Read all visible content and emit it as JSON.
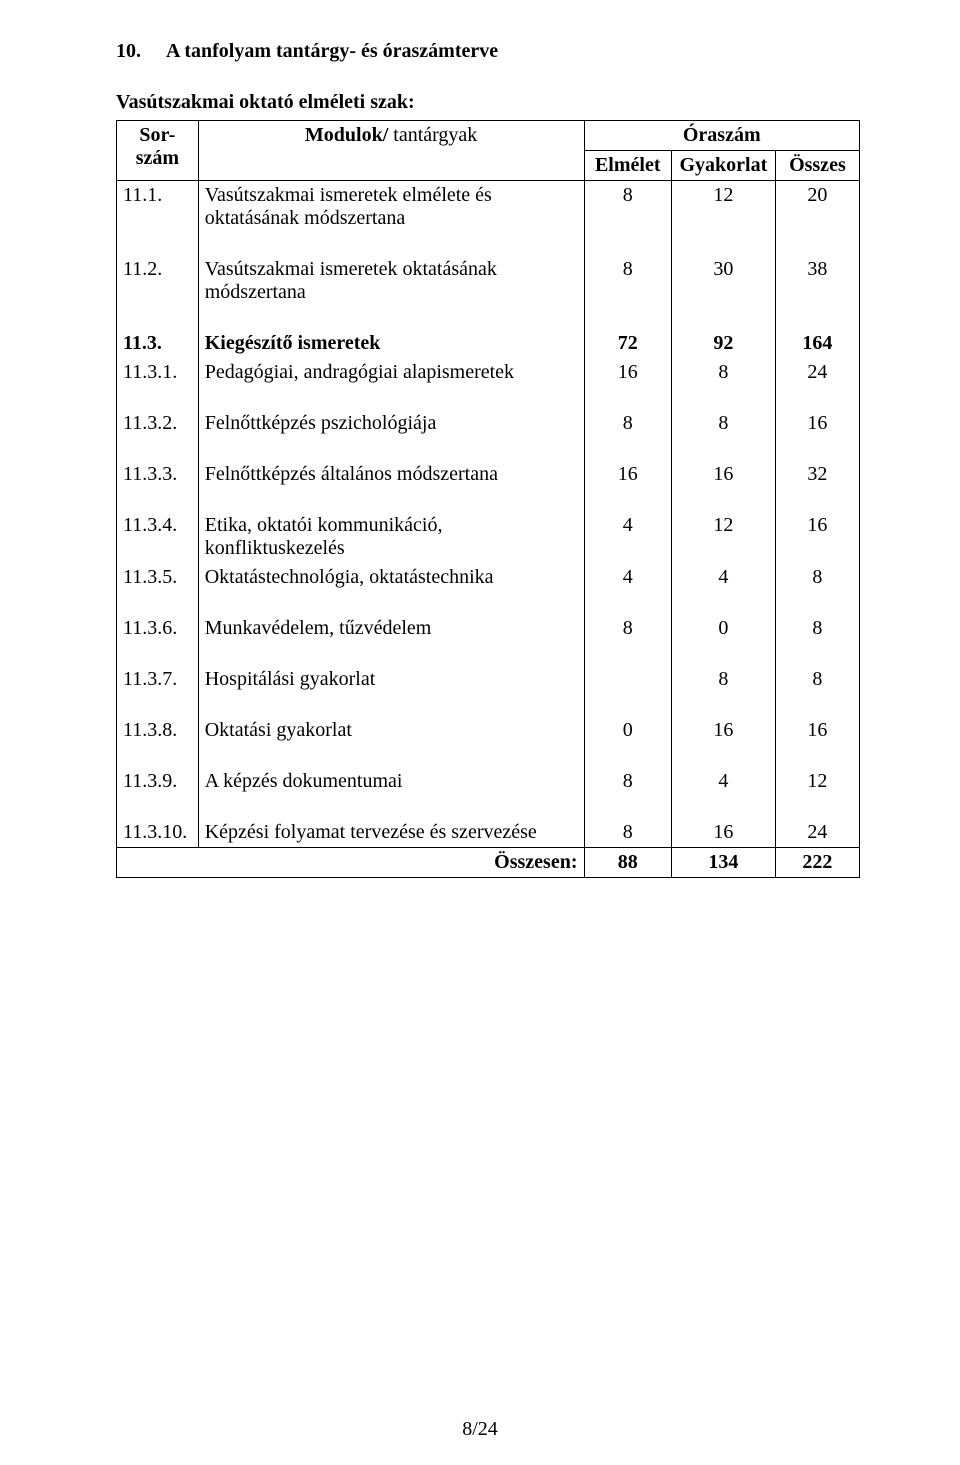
{
  "heading": {
    "number": "10.",
    "title": "A tanfolyam tantárgy- és óraszámterve"
  },
  "subheading": "Vasútszakmai  oktató elméleti szak:",
  "table": {
    "header": {
      "col1": "Sor-szám",
      "col2": "Modulok/ tantárgyak",
      "col3_span": "Óraszám",
      "col3a": "Elmélet",
      "col3b": "Gyakorlat",
      "col3c": "Összes"
    },
    "rows": [
      {
        "num": "11.1.",
        "name": "Vasútszakmai ismeretek elmélete és oktatásának módszertana",
        "e": "8",
        "g": "12",
        "o": "20",
        "bold": false
      },
      {
        "num": "11.2.",
        "name": "Vasútszakmai ismeretek oktatásának módszertana",
        "e": "8",
        "g": "30",
        "o": "38",
        "bold": false
      },
      {
        "num": "11.3.",
        "name": "Kiegészítő ismeretek",
        "e": "72",
        "g": "92",
        "o": "164",
        "bold": true
      },
      {
        "num": "11.3.1.",
        "name": "Pedagógiai, andragógiai alapismeretek",
        "e": "16",
        "g": "8",
        "o": "24",
        "bold": false
      },
      {
        "num": "11.3.2.",
        "name": "Felnőttképzés pszichológiája",
        "e": "8",
        "g": "8",
        "o": "16",
        "bold": false
      },
      {
        "num": "11.3.3.",
        "name": "Felnőttképzés általános módszertana",
        "e": "16",
        "g": "16",
        "o": "32",
        "bold": false
      },
      {
        "num": "11.3.4.",
        "name": "Etika, oktatói kommunikáció, konfliktuskezelés",
        "e": "4",
        "g": "12",
        "o": "16",
        "bold": false
      },
      {
        "num": "11.3.5.",
        "name": "Oktatástechnológia, oktatástechnika",
        "e": "4",
        "g": "4",
        "o": "8",
        "bold": false
      },
      {
        "num": "11.3.6.",
        "name": "Munkavédelem, tűzvédelem",
        "e": "8",
        "g": "0",
        "o": "8",
        "bold": false
      },
      {
        "num": "11.3.7.",
        "name": "Hospitálási gyakorlat",
        "e": "",
        "g": "8",
        "o": "8",
        "bold": false
      },
      {
        "num": "11.3.8.",
        "name": "Oktatási gyakorlat",
        "e": "0",
        "g": "16",
        "o": "16",
        "bold": false
      },
      {
        "num": "11.3.9.",
        "name": "A képzés dokumentumai",
        "e": "8",
        "g": "4",
        "o": "12",
        "bold": false
      },
      {
        "num": "11.3.10.",
        "name": "Képzési folyamat tervezése és szervezése",
        "e": "8",
        "g": "16",
        "o": "24",
        "bold": false
      }
    ],
    "total": {
      "label": "Összesen:",
      "e": "88",
      "g": "134",
      "o": "222"
    }
  },
  "footer": "8/24"
}
